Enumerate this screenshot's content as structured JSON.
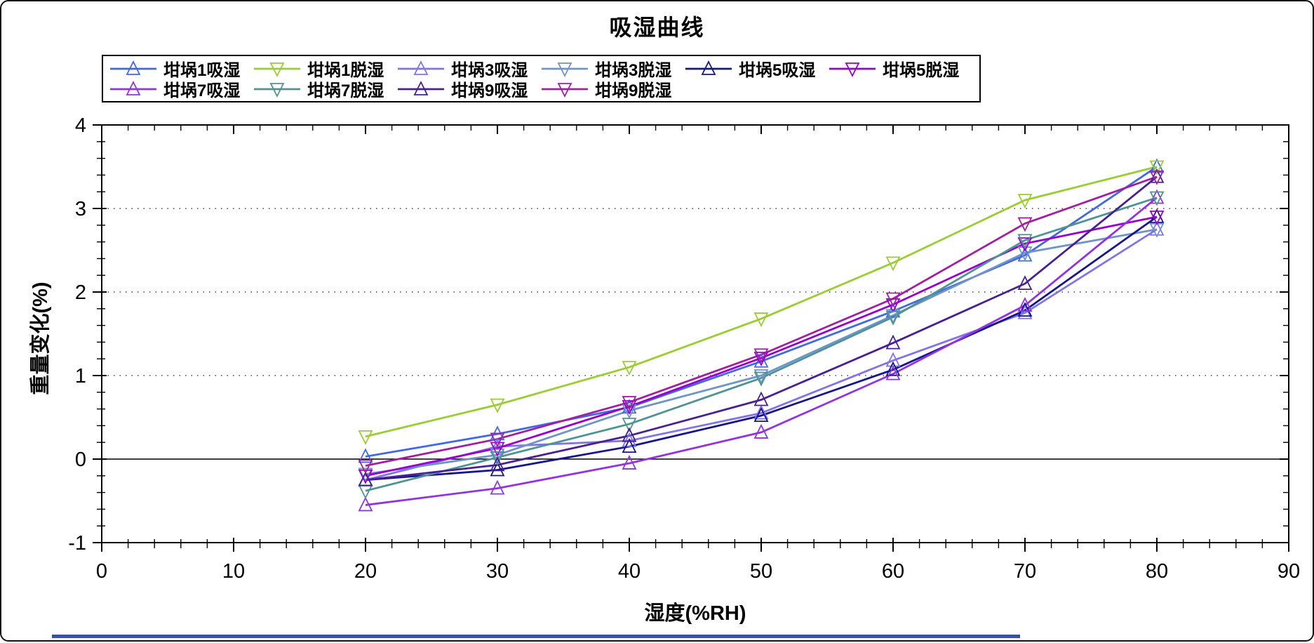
{
  "window": {
    "bottom_edge_bar_color": "#3a4fa8",
    "frame_border_color": "#111111"
  },
  "chart_data": {
    "type": "line",
    "title": "吸湿曲线",
    "xlabel": "湿度(%RH)",
    "ylabel": "重量变化(%)",
    "xlim": [
      0,
      90
    ],
    "ylim": [
      -1,
      4
    ],
    "x_major_ticks": [
      0,
      10,
      20,
      30,
      40,
      50,
      60,
      70,
      80,
      90
    ],
    "x_minor_step": 2,
    "y_major_ticks": [
      -1,
      0,
      1,
      2,
      3,
      4
    ],
    "y_minor_step": 0.2,
    "dotted_gridlines_y": [
      1,
      2,
      3
    ],
    "zero_line_y": 0,
    "grid": "horizontal-dotted",
    "legend_position": "top",
    "legend_rows": [
      6,
      4
    ],
    "x": [
      20,
      30,
      40,
      50,
      60,
      70,
      80
    ],
    "series": [
      {
        "id": "crucible-1-absorb",
        "label": "坩埚1吸湿",
        "color": "#4169E1",
        "marker": "triangle-up",
        "values": [
          0.03,
          0.3,
          0.62,
          1.17,
          1.77,
          2.44,
          3.5
        ]
      },
      {
        "id": "crucible-1-desorb",
        "label": "坩埚1脱湿",
        "color": "#9ACD32",
        "marker": "triangle-down",
        "values": [
          0.27,
          0.65,
          1.1,
          1.68,
          2.35,
          3.1,
          3.5
        ]
      },
      {
        "id": "crucible-3-absorb",
        "label": "坩埚3吸湿",
        "color": "#8273E6",
        "marker": "triangle-up",
        "values": [
          -0.25,
          0.15,
          0.22,
          0.55,
          1.18,
          1.75,
          2.75
        ]
      },
      {
        "id": "crucible-3-desorb",
        "label": "坩埚3脱湿",
        "color": "#6E94C8",
        "marker": "triangle-down",
        "values": [
          -0.18,
          0.05,
          0.58,
          1.0,
          1.72,
          2.47,
          2.75
        ]
      },
      {
        "id": "crucible-5-absorb",
        "label": "坩埚5吸湿",
        "color": "#16168C",
        "marker": "triangle-up",
        "values": [
          -0.25,
          -0.13,
          0.15,
          0.52,
          1.07,
          1.78,
          2.9
        ]
      },
      {
        "id": "crucible-5-desorb",
        "label": "坩埚5脱湿",
        "color": "#9900CC",
        "marker": "triangle-down",
        "values": [
          -0.2,
          0.13,
          0.63,
          1.21,
          1.85,
          2.58,
          2.9
        ]
      },
      {
        "id": "crucible-7-absorb",
        "label": "坩埚7吸湿",
        "color": "#9233E0",
        "marker": "triangle-up",
        "values": [
          -0.55,
          -0.35,
          -0.05,
          0.32,
          1.02,
          1.84,
          3.13
        ]
      },
      {
        "id": "crucible-7-desorb",
        "label": "坩埚7脱湿",
        "color": "#4F9494",
        "marker": "triangle-down",
        "values": [
          -0.38,
          0.02,
          0.42,
          0.97,
          1.7,
          2.62,
          3.13
        ]
      },
      {
        "id": "crucible-9-absorb",
        "label": "坩埚9吸湿",
        "color": "#482090",
        "marker": "triangle-up",
        "values": [
          -0.25,
          -0.07,
          0.28,
          0.71,
          1.39,
          2.1,
          3.38
        ]
      },
      {
        "id": "crucible-9-desorb",
        "label": "坩埚9脱湿",
        "color": "#A020A0",
        "marker": "triangle-down",
        "values": [
          -0.08,
          0.24,
          0.68,
          1.25,
          1.92,
          2.82,
          3.38
        ]
      }
    ]
  }
}
